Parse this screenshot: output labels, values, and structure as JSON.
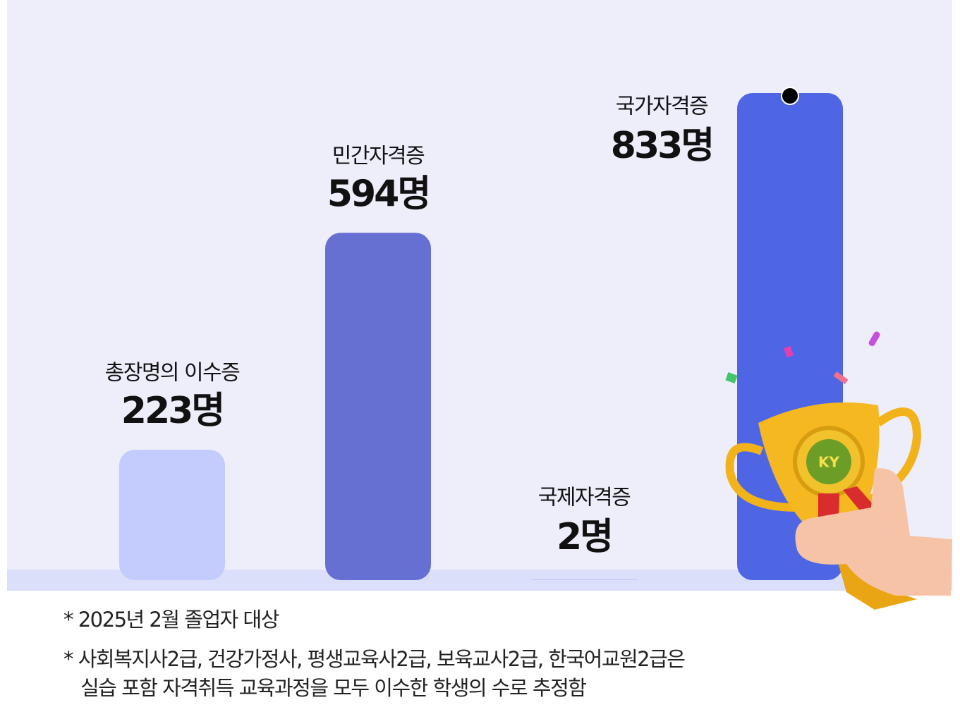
{
  "chart_data": {
    "type": "bar",
    "categories": [
      "총장명의 이수증",
      "민간자격증",
      "국제자격증",
      "국가자격증"
    ],
    "values": [
      223,
      594,
      2,
      833
    ],
    "value_labels": [
      "223명",
      "594명",
      "2명",
      "833명"
    ],
    "colors": [
      "#c3ccfd",
      "#6670d2",
      "#c3ccfd",
      "#4f66e4"
    ]
  },
  "notes": [
    "*  2025년 2월 졸업자 대상",
    "* 사회복지사2급, 건강가정사, 평생교육사2급, 보육교사2급, 한국어교원2급은",
    "실습 포함 자격취득 교육과정을 모두 이수한 학생의 수로 추정함"
  ]
}
